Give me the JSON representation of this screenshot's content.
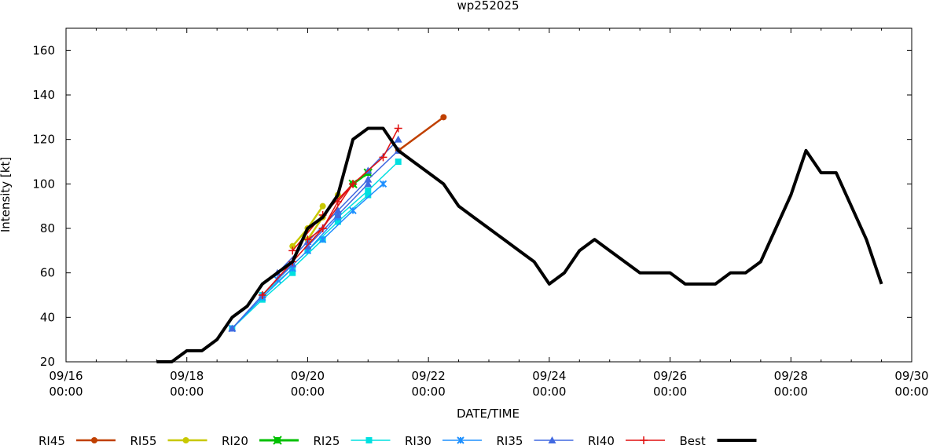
{
  "chart_data": {
    "type": "line",
    "title": "wp252025",
    "xlabel": "DATE/TIME",
    "ylabel": "Intensity [kt]",
    "xlim_hours": [
      0,
      336
    ],
    "ylim": [
      20,
      170
    ],
    "y_ticks": [
      20,
      40,
      60,
      80,
      100,
      120,
      140,
      160
    ],
    "x_ticks": [
      {
        "hour": 0,
        "date": "09/16",
        "time": "00:00"
      },
      {
        "hour": 48,
        "date": "09/18",
        "time": "00:00"
      },
      {
        "hour": 96,
        "date": "09/20",
        "time": "00:00"
      },
      {
        "hour": 144,
        "date": "09/22",
        "time": "00:00"
      },
      {
        "hour": 192,
        "date": "09/24",
        "time": "00:00"
      },
      {
        "hour": 240,
        "date": "09/26",
        "time": "00:00"
      },
      {
        "hour": 288,
        "date": "09/28",
        "time": "00:00"
      },
      {
        "hour": 336,
        "date": "09/30",
        "time": "00:00"
      }
    ],
    "x_minor_tick_hours": [
      12,
      24,
      36,
      60,
      72,
      84,
      108,
      120,
      132,
      156,
      168,
      180,
      204,
      216,
      228,
      252,
      264,
      276,
      300,
      312,
      324
    ],
    "legend_position": "bottom",
    "series": [
      {
        "name": "RI45",
        "color": "#c04000",
        "marker": "circle",
        "width": 2.5,
        "tracks": [
          {
            "x": [
              132,
              150
            ],
            "y": [
              115,
              130
            ]
          }
        ]
      },
      {
        "name": "RI55",
        "color": "#c8c800",
        "marker": "circle",
        "width": 2.5,
        "tracks": [
          {
            "x": [
              90,
              96,
              102
            ],
            "y": [
              72,
              80,
              90
            ]
          },
          {
            "x": [
              96,
              102,
              108
            ],
            "y": [
              75,
              85,
              95
            ]
          }
        ]
      },
      {
        "name": "RI20",
        "color": "#00c000",
        "marker": "square-x",
        "width": 3,
        "tracks": [
          {
            "x": [
              114,
              120
            ],
            "y": [
              100,
              105
            ]
          }
        ]
      },
      {
        "name": "RI25",
        "color": "#00e0e0",
        "marker": "square",
        "width": 1.5,
        "tracks": [
          {
            "x": [
              66,
              78,
              90
            ],
            "y": [
              35,
              48,
              60
            ]
          },
          {
            "x": [
              78,
              90,
              102
            ],
            "y": [
              50,
              62,
              75
            ]
          },
          {
            "x": [
              96,
              108,
              120
            ],
            "y": [
              70,
              83,
              95
            ]
          },
          {
            "x": [
              108,
              120,
              132
            ],
            "y": [
              85,
              97,
              110
            ]
          }
        ]
      },
      {
        "name": "RI30",
        "color": "#1e90ff",
        "marker": "x",
        "width": 1.5,
        "tracks": [
          {
            "x": [
              66,
              78,
              90
            ],
            "y": [
              35,
              49,
              62
            ]
          },
          {
            "x": [
              84,
              96,
              108
            ],
            "y": [
              57,
              70,
              85
            ]
          },
          {
            "x": [
              102,
              114,
              126
            ],
            "y": [
              75,
              88,
              100
            ]
          }
        ]
      },
      {
        "name": "RI35",
        "color": "#4169e1",
        "marker": "triangle",
        "width": 1.5,
        "tracks": [
          {
            "x": [
              66,
              78,
              90
            ],
            "y": [
              35,
              50,
              64
            ]
          },
          {
            "x": [
              84,
              96,
              108
            ],
            "y": [
              60,
              74,
              88
            ]
          },
          {
            "x": [
              96,
              108,
              120
            ],
            "y": [
              72,
              86,
              100
            ]
          },
          {
            "x": [
              108,
              120,
              132
            ],
            "y": [
              88,
              102,
              115
            ]
          },
          {
            "x": [
              120,
              132
            ],
            "y": [
              106,
              120
            ]
          }
        ]
      },
      {
        "name": "RI40",
        "color": "#e01010",
        "marker": "plus",
        "width": 1.5,
        "tracks": [
          {
            "x": [
              78,
              90,
              102,
              114
            ],
            "y": [
              50,
              65,
              80,
              100
            ]
          },
          {
            "x": [
              90,
              102,
              114,
              126,
              132
            ],
            "y": [
              70,
              86,
              100,
              112,
              125
            ]
          },
          {
            "x": [
              96,
              102,
              108,
              114
            ],
            "y": [
              75,
              80,
              92,
              100
            ]
          }
        ]
      }
    ],
    "best": {
      "name": "Best",
      "color": "#000000",
      "width": 4,
      "x": [
        36,
        42,
        48,
        54,
        60,
        66,
        72,
        78,
        84,
        90,
        96,
        102,
        108,
        114,
        120,
        126,
        132,
        138,
        144,
        150,
        156,
        162,
        168,
        174,
        180,
        186,
        192,
        198,
        204,
        210,
        216,
        222,
        228,
        234,
        240,
        246,
        252,
        258,
        264,
        270,
        276,
        282,
        288,
        294,
        300,
        306,
        312,
        318,
        324
      ],
      "y": [
        20,
        20,
        25,
        25,
        30,
        40,
        45,
        55,
        60,
        65,
        80,
        85,
        95,
        120,
        125,
        125,
        115,
        110,
        105,
        100,
        90,
        85,
        80,
        75,
        70,
        65,
        55,
        60,
        70,
        75,
        70,
        65,
        60,
        60,
        60,
        55,
        55,
        55,
        60,
        60,
        65,
        80,
        95,
        115,
        105,
        105,
        90,
        75,
        55
      ]
    }
  }
}
